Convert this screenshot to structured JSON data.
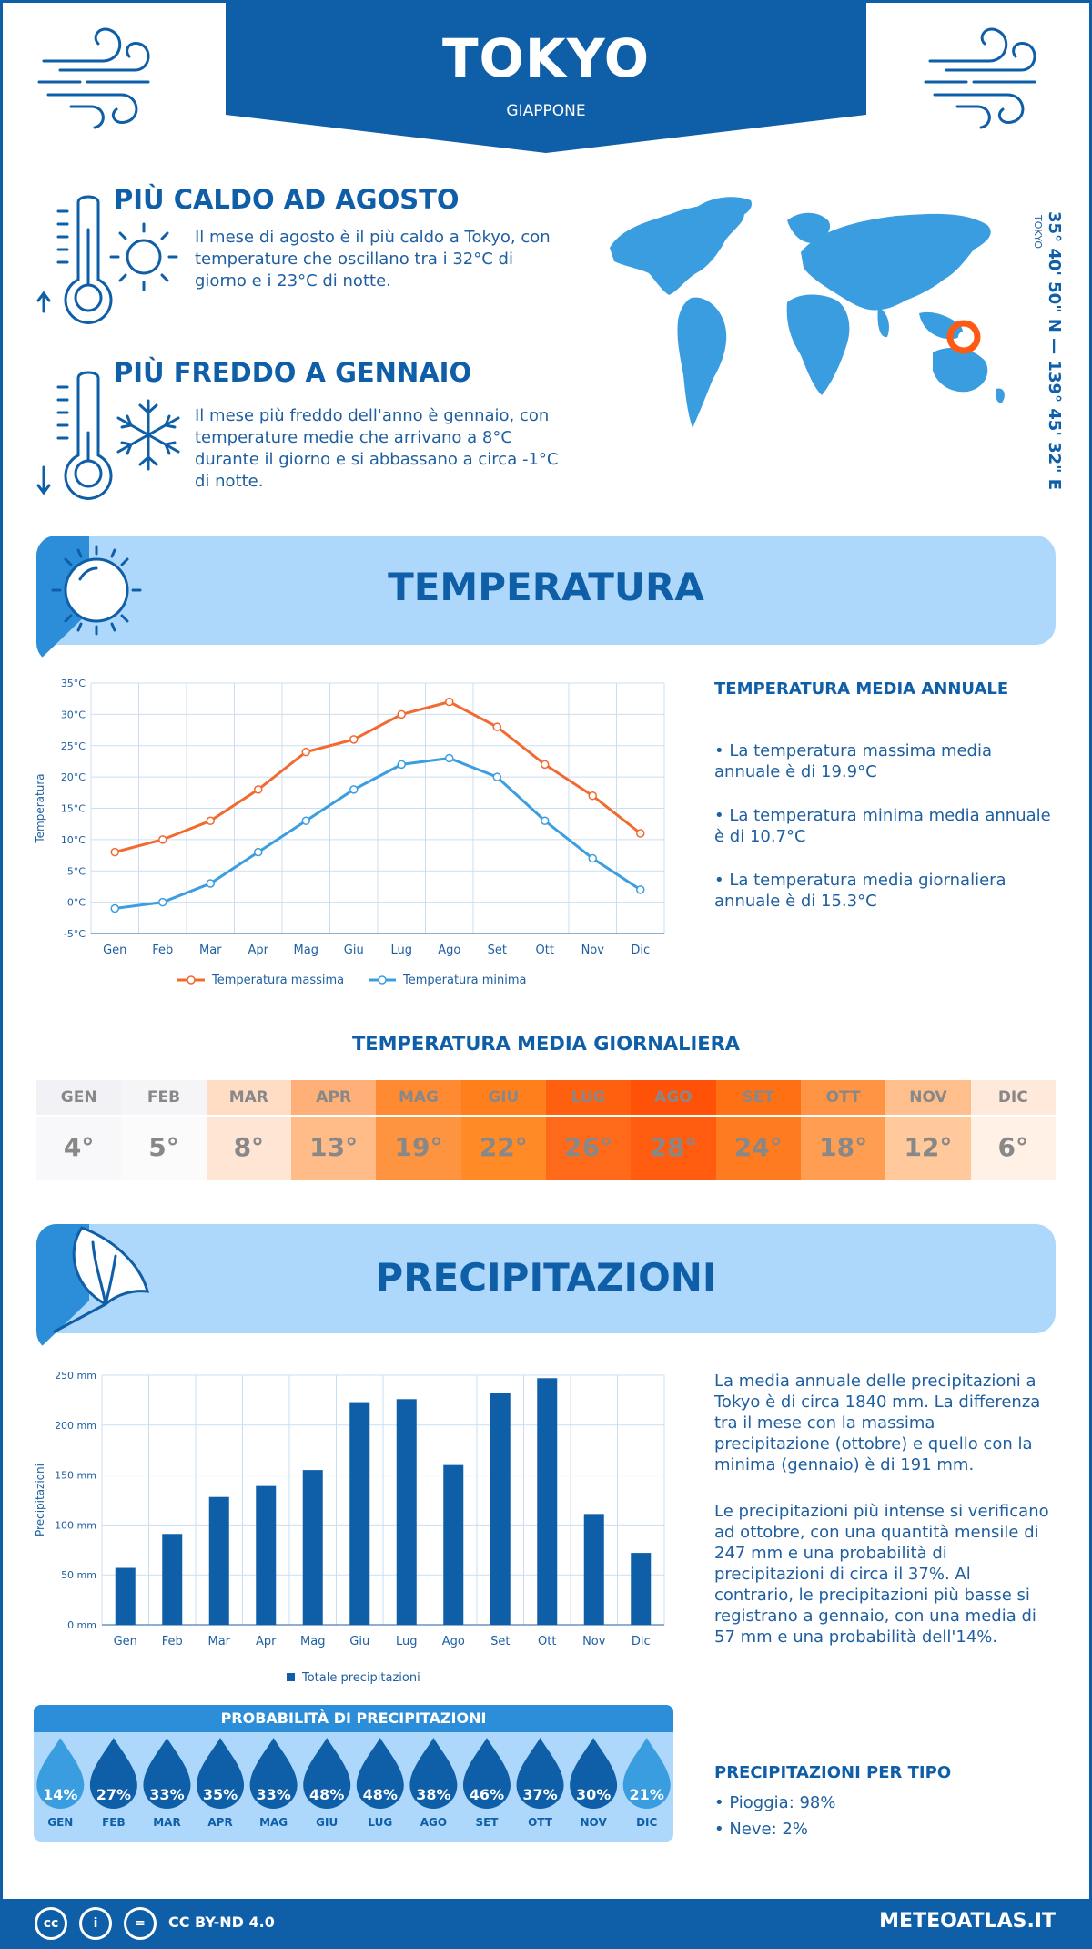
{
  "header": {
    "city": "TOKYO",
    "country": "GIAPPONE"
  },
  "coords": {
    "text": "35° 40' 50\" N — 139° 45' 32\" E",
    "city": "TOKYO"
  },
  "highlights": {
    "hot": {
      "title": "PIÙ CALDO AD AGOSTO",
      "text": "Il mese di agosto è il più caldo a Tokyo, con temperature che oscillano tra i 32°C di giorno e i 23°C di notte."
    },
    "cold": {
      "title": "PIÙ FREDDO A GENNAIO",
      "text": "Il mese più freddo dell'anno è gennaio, con temperature medie che arrivano a 8°C durante il giorno e si abbassano a circa -1°C di notte."
    }
  },
  "temperature": {
    "banner": "TEMPERATURA",
    "side_title": "TEMPERATURA MEDIA ANNUALE",
    "bullets": [
      "• La temperatura massima media annuale è di 19.9°C",
      "• La temperatura minima media annuale è di 10.7°C",
      "• La temperatura media giornaliera annuale è di 15.3°C"
    ]
  },
  "daily": {
    "title": "TEMPERATURA MEDIA GIORNALIERA",
    "months": [
      "GEN",
      "FEB",
      "MAR",
      "APR",
      "MAG",
      "GIU",
      "LUG",
      "AGO",
      "SET",
      "OTT",
      "NOV",
      "DIC"
    ],
    "values": [
      "4°",
      "5°",
      "8°",
      "13°",
      "19°",
      "22°",
      "26°",
      "28°",
      "24°",
      "18°",
      "12°",
      "6°"
    ],
    "colors": [
      "#f8f8fb",
      "#fbfbfc",
      "#ffe6d4",
      "#ffbb88",
      "#ff9440",
      "#ff8a26",
      "#ff6a1a",
      "#ff5c10",
      "#ff7b1f",
      "#ff9e52",
      "#ffc99c",
      "#fff1e6"
    ],
    "head_colors": [
      "#f2f2f6",
      "#f5f5f8",
      "#ffdcc4",
      "#ffb078",
      "#ff8a32",
      "#ff7f1c",
      "#ff6010",
      "#ff5208",
      "#ff7014",
      "#ff9444",
      "#ffbf8c",
      "#ffe9da"
    ]
  },
  "precipitation": {
    "banner": "PRECIPITAZIONI",
    "text1": "La media annuale delle precipitazioni a Tokyo è di circa 1840 mm. La differenza tra il mese con la massima precipitazione (ottobre) e quello con la minima (gennaio) è di 191 mm.",
    "text2": "Le precipitazioni più intense si verificano ad ottobre, con una quantità mensile di 247 mm e una probabilità di precipitazioni di circa il 37%. Al contrario, le precipitazioni più basse si registrano a gennaio, con una media di 57 mm e una probabilità dell'14%.",
    "prob_title": "PROBABILITÀ DI PRECIPITAZIONI",
    "prob_months": [
      "GEN",
      "FEB",
      "MAR",
      "APR",
      "MAG",
      "GIU",
      "LUG",
      "AGO",
      "SET",
      "OTT",
      "NOV",
      "DIC"
    ],
    "prob_values": [
      "14%",
      "27%",
      "33%",
      "35%",
      "33%",
      "48%",
      "48%",
      "38%",
      "46%",
      "37%",
      "30%",
      "21%"
    ],
    "type_title": "PRECIPITAZIONI PER TIPO",
    "type_rain": "• Pioggia: 98%",
    "type_snow": "• Neve: 2%"
  },
  "footer": {
    "license": "CC BY-ND 4.0",
    "site": "METEOATLAS.IT"
  },
  "chart_data": [
    {
      "type": "line",
      "categories": [
        "Gen",
        "Feb",
        "Mar",
        "Apr",
        "Mag",
        "Giu",
        "Lug",
        "Ago",
        "Set",
        "Ott",
        "Nov",
        "Dic"
      ],
      "series": [
        {
          "name": "Temperatura massima",
          "values": [
            8,
            10,
            13,
            18,
            24,
            26,
            30,
            32,
            28,
            22,
            17,
            11
          ],
          "color": "#f26a30"
        },
        {
          "name": "Temperatura minima",
          "values": [
            -1,
            0,
            3,
            8,
            13,
            18,
            22,
            23,
            20,
            13,
            7,
            2
          ],
          "color": "#3c9ee0"
        }
      ],
      "ylabel": "Temperatura",
      "ylim": [
        -5,
        35
      ],
      "yticks": [
        "-5°C",
        "0°C",
        "5°C",
        "10°C",
        "15°C",
        "20°C",
        "25°C",
        "30°C",
        "35°C"
      ],
      "grid": true,
      "legend": "bottom"
    },
    {
      "type": "bar",
      "categories": [
        "Gen",
        "Feb",
        "Mar",
        "Apr",
        "Mag",
        "Giu",
        "Lug",
        "Ago",
        "Set",
        "Ott",
        "Nov",
        "Dic"
      ],
      "series": [
        {
          "name": "Totale precipitazioni",
          "values": [
            57,
            91,
            128,
            139,
            155,
            223,
            226,
            160,
            232,
            247,
            111,
            72
          ],
          "color": "#0f5ea8"
        }
      ],
      "ylabel": "Precipitazioni",
      "ylim": [
        0,
        250
      ],
      "yticks": [
        "0 mm",
        "50 mm",
        "100 mm",
        "150 mm",
        "200 mm",
        "250 mm"
      ],
      "grid": true,
      "legend": "bottom"
    }
  ]
}
